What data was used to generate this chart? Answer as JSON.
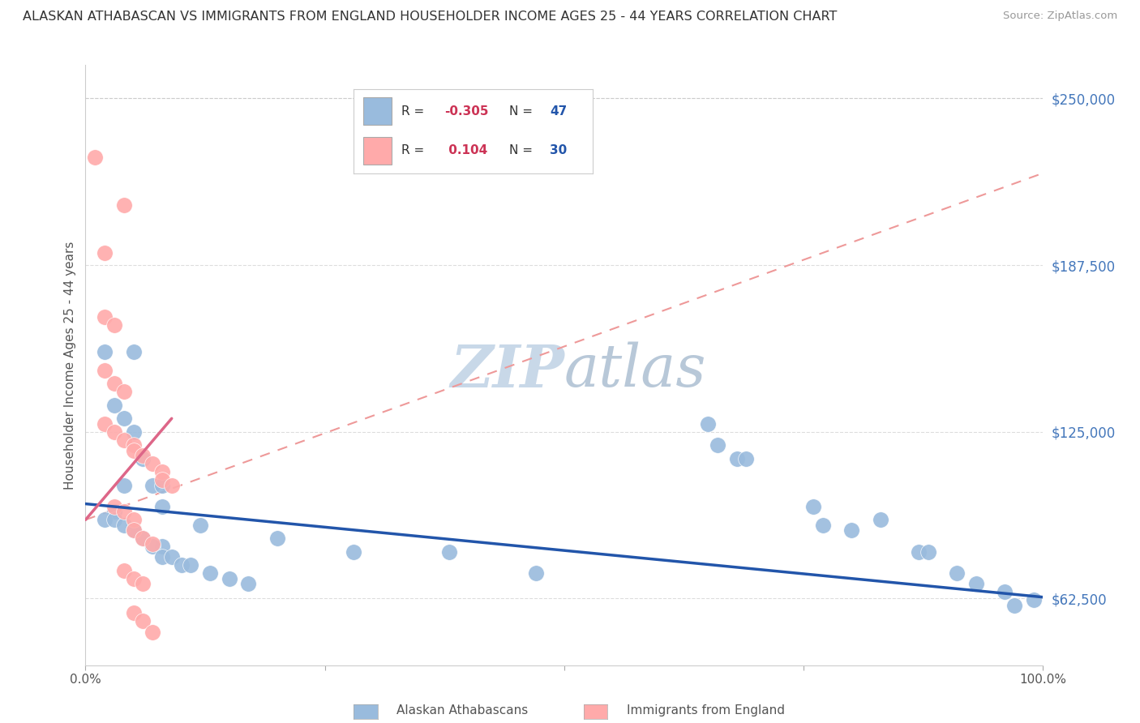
{
  "title": "ALASKAN ATHABASCAN VS IMMIGRANTS FROM ENGLAND HOUSEHOLDER INCOME AGES 25 - 44 YEARS CORRELATION CHART",
  "source": "Source: ZipAtlas.com",
  "ylabel": "Householder Income Ages 25 - 44 years",
  "y_ticks": [
    62500,
    125000,
    187500,
    250000
  ],
  "y_tick_labels": [
    "$62,500",
    "$125,000",
    "$187,500",
    "$250,000"
  ],
  "blue_color": "#99BBDD",
  "pink_color": "#FFAAAA",
  "line_blue_color": "#2255AA",
  "line_pink_solid_color": "#DD6688",
  "line_pink_dash_color": "#EE9999",
  "watermark_color": "#C8D8E8",
  "legend_box_color": "#DDDDDD",
  "blue_points_x": [
    2,
    3,
    4,
    5,
    5,
    6,
    7,
    8,
    3,
    5,
    8,
    2,
    3,
    4,
    5,
    6,
    7,
    8,
    9,
    10,
    11,
    13,
    15,
    17,
    4,
    8,
    12,
    20,
    28,
    38,
    47,
    65,
    66,
    68,
    69,
    76,
    77,
    80,
    83,
    87,
    88,
    91,
    93,
    96,
    97,
    99
  ],
  "blue_points_y": [
    155000,
    135000,
    130000,
    155000,
    125000,
    115000,
    105000,
    105000,
    95000,
    88000,
    82000,
    92000,
    92000,
    90000,
    88000,
    85000,
    82000,
    78000,
    78000,
    75000,
    75000,
    72000,
    70000,
    68000,
    105000,
    97000,
    90000,
    85000,
    80000,
    80000,
    72000,
    128000,
    120000,
    115000,
    115000,
    97000,
    90000,
    88000,
    92000,
    80000,
    80000,
    72000,
    68000,
    65000,
    60000,
    62000
  ],
  "pink_points_x": [
    1,
    4,
    2,
    2,
    3,
    2,
    3,
    4,
    2,
    3,
    4,
    5,
    5,
    6,
    7,
    8,
    8,
    9,
    3,
    4,
    5,
    5,
    6,
    7,
    4,
    5,
    6,
    5,
    6,
    7
  ],
  "pink_points_y": [
    228000,
    210000,
    192000,
    168000,
    165000,
    148000,
    143000,
    140000,
    128000,
    125000,
    122000,
    120000,
    118000,
    116000,
    113000,
    110000,
    107000,
    105000,
    97000,
    95000,
    92000,
    88000,
    85000,
    83000,
    73000,
    70000,
    68000,
    57000,
    54000,
    50000
  ],
  "blue_line_x0": 0,
  "blue_line_x1": 100,
  "blue_line_y0": 98000,
  "blue_line_y1": 63000,
  "pink_solid_x0": 0,
  "pink_solid_x1": 9,
  "pink_solid_y0": 92000,
  "pink_solid_y1": 130000,
  "pink_dash_x0": 0,
  "pink_dash_x1": 100,
  "pink_dash_y0": 92000,
  "pink_dash_y1": 222000,
  "xlim": [
    0,
    100
  ],
  "ylim": [
    37500,
    262500
  ],
  "x_ticks": [
    0,
    25,
    50,
    75,
    100
  ],
  "x_tick_labels": [
    "0.0%",
    "",
    "",
    "",
    "100.0%"
  ]
}
